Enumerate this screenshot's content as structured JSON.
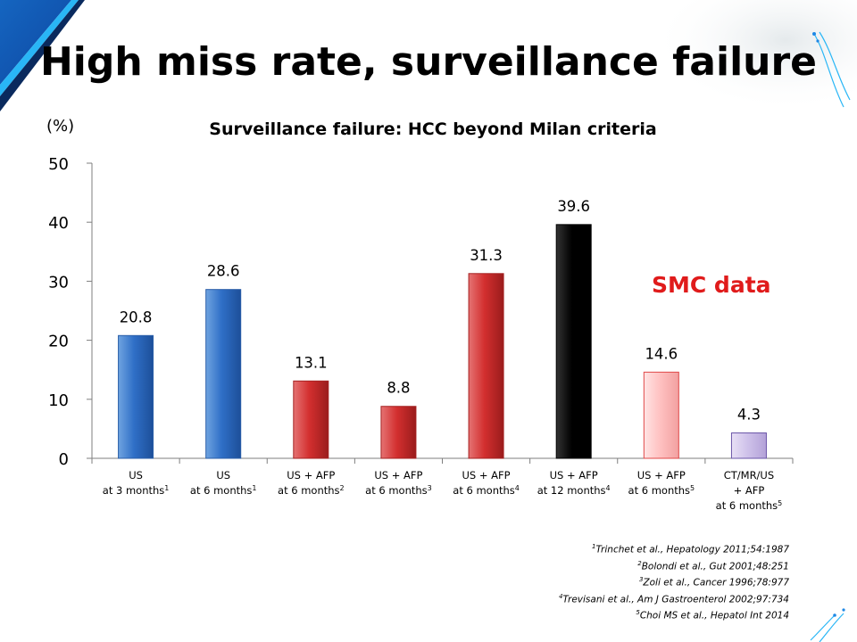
{
  "slide": {
    "title": "High miss rate, surveillance failure",
    "annotation": "SMC data"
  },
  "chart_data": {
    "type": "bar",
    "title": "Surveillance failure: HCC beyond Milan criteria",
    "ylabel": "(%)",
    "ylim": [
      0,
      50
    ],
    "yticks": [
      0,
      10,
      20,
      30,
      40,
      50
    ],
    "grid": false,
    "categories": [
      {
        "lines": [
          "US",
          "at 3 months"
        ],
        "sup": "1"
      },
      {
        "lines": [
          "US",
          "at 6 months"
        ],
        "sup": "1"
      },
      {
        "lines": [
          "US + AFP",
          "at 6 months"
        ],
        "sup": "2"
      },
      {
        "lines": [
          "US + AFP",
          "at 6 months"
        ],
        "sup": "3"
      },
      {
        "lines": [
          "US + AFP",
          "at 6 months"
        ],
        "sup": "4"
      },
      {
        "lines": [
          "US + AFP",
          "at 12 months"
        ],
        "sup": "4"
      },
      {
        "lines": [
          "US + AFP",
          "at 6 months"
        ],
        "sup": "5"
      },
      {
        "lines": [
          "CT/MR/US",
          "+ AFP",
          "at 6 months"
        ],
        "sup": "5"
      }
    ],
    "values": [
      20.8,
      28.6,
      13.1,
      8.8,
      31.3,
      39.6,
      14.6,
      4.3
    ],
    "data_labels": [
      "20.8",
      "28.6",
      "13.1",
      "8.8",
      "31.3",
      "39.6",
      "14.6",
      "4.3"
    ],
    "bar_colors": [
      "blue",
      "blue",
      "red",
      "red",
      "red",
      "black",
      "light-pink",
      "lavender"
    ]
  },
  "references": [
    {
      "sup": "1",
      "text": "Trinchet et al., Hepatology 2011;54:1987"
    },
    {
      "sup": "2",
      "text": "Bolondi et al., Gut 2001;48:251"
    },
    {
      "sup": "3",
      "text": "Zoli et al., Cancer 1996;78:977"
    },
    {
      "sup": "4",
      "text": "Trevisani et al., Am J Gastroenterol  2002;97:734"
    },
    {
      "sup": "5",
      "text": "Choi MS et al., Hepatol Int 2014"
    }
  ]
}
